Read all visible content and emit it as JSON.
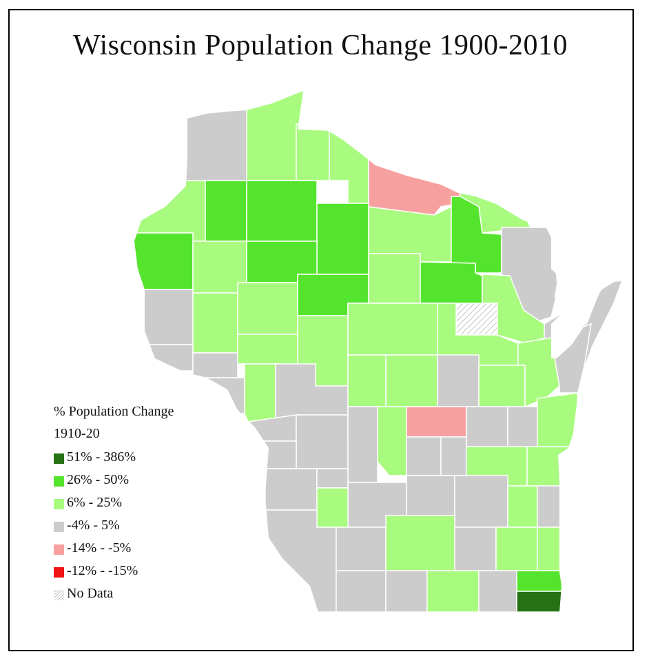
{
  "title": "Wisconsin Population Change 1900-2010",
  "legend": {
    "heading": "% Population Change",
    "period": "1910-20",
    "classes": [
      {
        "id": "c51",
        "label": "51% - 386%",
        "color": "#267114"
      },
      {
        "id": "c26",
        "label": "26% - 50%",
        "color": "#55e42e"
      },
      {
        "id": "c6",
        "label": "6% - 25%",
        "color": "#a8fb7f"
      },
      {
        "id": "c0",
        "label": "-4% - 5%",
        "color": "#cccccc"
      },
      {
        "id": "cm14",
        "label": "-14% - -5%",
        "color": "#f7a0a0"
      },
      {
        "id": "cm12",
        "label": "-12% - -15%",
        "color": "#f01414"
      }
    ],
    "no_data_label": "No Data"
  },
  "chart_data": {
    "type": "choropleth",
    "title": "Wisconsin Population Change 1900-2010",
    "legend_title": "% Population Change 1910-20",
    "legend_placement": "bottom-left",
    "classes": [
      "51% - 386%",
      "26% - 50%",
      "6% - 25%",
      "-4% - 5%",
      "-14% - -5%",
      "-12% - -15%",
      "No Data"
    ],
    "county_class_counts": {
      "51% - 386%": 1,
      "26% - 50%": 9,
      "6% - 25%": 33,
      "-4% - 5%": 27,
      "-14% - -5%": 2,
      "-12% - -15%": 0,
      "No Data": 1
    }
  }
}
